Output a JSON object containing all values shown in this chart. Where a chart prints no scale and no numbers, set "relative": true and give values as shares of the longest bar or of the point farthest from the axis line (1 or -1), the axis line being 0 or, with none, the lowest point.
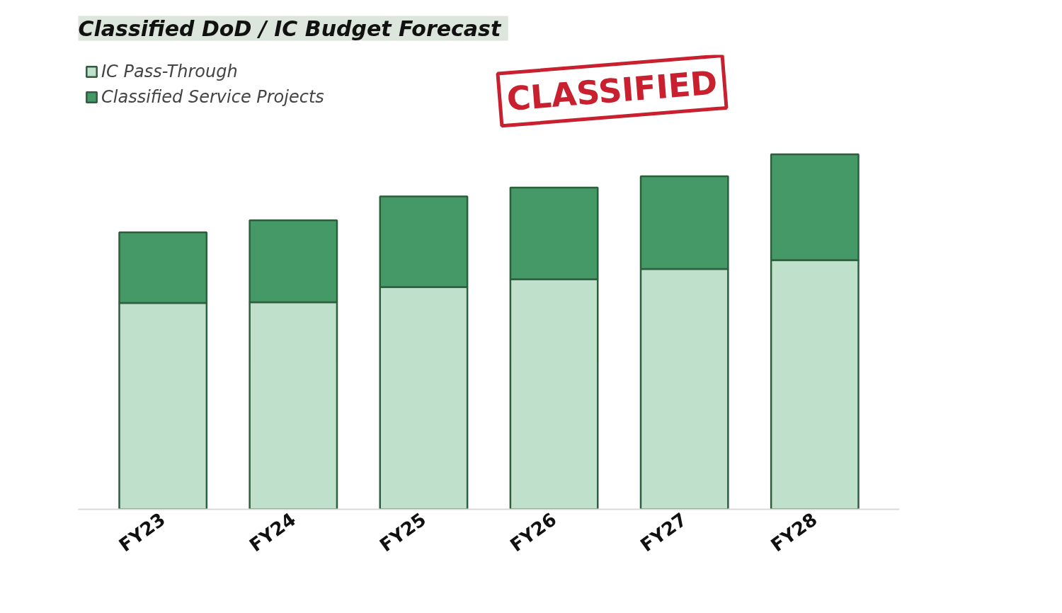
{
  "chart_data": {
    "type": "bar",
    "title": "Classified DoD  / IC Budget Forecast",
    "categories": [
      "FY23",
      "FY24",
      "FY25",
      "FY26",
      "FY27",
      "FY28"
    ],
    "relative": true,
    "stacked": true,
    "legend": "top left",
    "grid": false,
    "series": [
      {
        "name": "IC Pass-Through",
        "color": "#bfe1cb",
        "values": [
          0.581,
          0.583,
          0.626,
          0.648,
          0.677,
          0.702
        ]
      },
      {
        "name": "Classified Service Projects",
        "color": "#449966",
        "values": [
          0.199,
          0.231,
          0.255,
          0.258,
          0.261,
          0.298
        ]
      }
    ],
    "annotations": [
      "CLASSIFIED"
    ]
  }
}
